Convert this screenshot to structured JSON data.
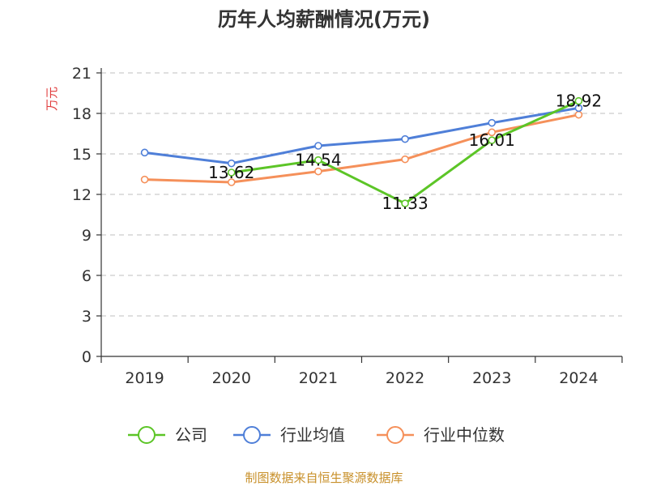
{
  "chart_data": {
    "type": "line",
    "title": "历年人均薪酬情况(万元)",
    "ylabel": "万元",
    "xlabel": "",
    "ylim": [
      0,
      21
    ],
    "yticks": [
      0,
      3,
      6,
      9,
      12,
      15,
      18,
      21
    ],
    "grid": true,
    "legend_position": "bottom",
    "categories": [
      "2019",
      "2020",
      "2021",
      "2022",
      "2023",
      "2024"
    ],
    "series": [
      {
        "name": "公司",
        "color": "#5cc527",
        "values": [
          null,
          13.62,
          14.54,
          11.33,
          16.01,
          18.92
        ],
        "labels": [
          "",
          "13.62",
          "14.54",
          "11.33",
          "16.01",
          "18.92"
        ]
      },
      {
        "name": "行业均值",
        "color": "#4f7fd8",
        "values": [
          15.1,
          14.3,
          15.6,
          16.1,
          17.3,
          18.4
        ],
        "labels": []
      },
      {
        "name": "行业中位数",
        "color": "#f5905a",
        "values": [
          13.1,
          12.9,
          13.7,
          14.6,
          16.6,
          17.9
        ],
        "labels": []
      }
    ],
    "source": "制图数据来自恒生聚源数据库"
  }
}
